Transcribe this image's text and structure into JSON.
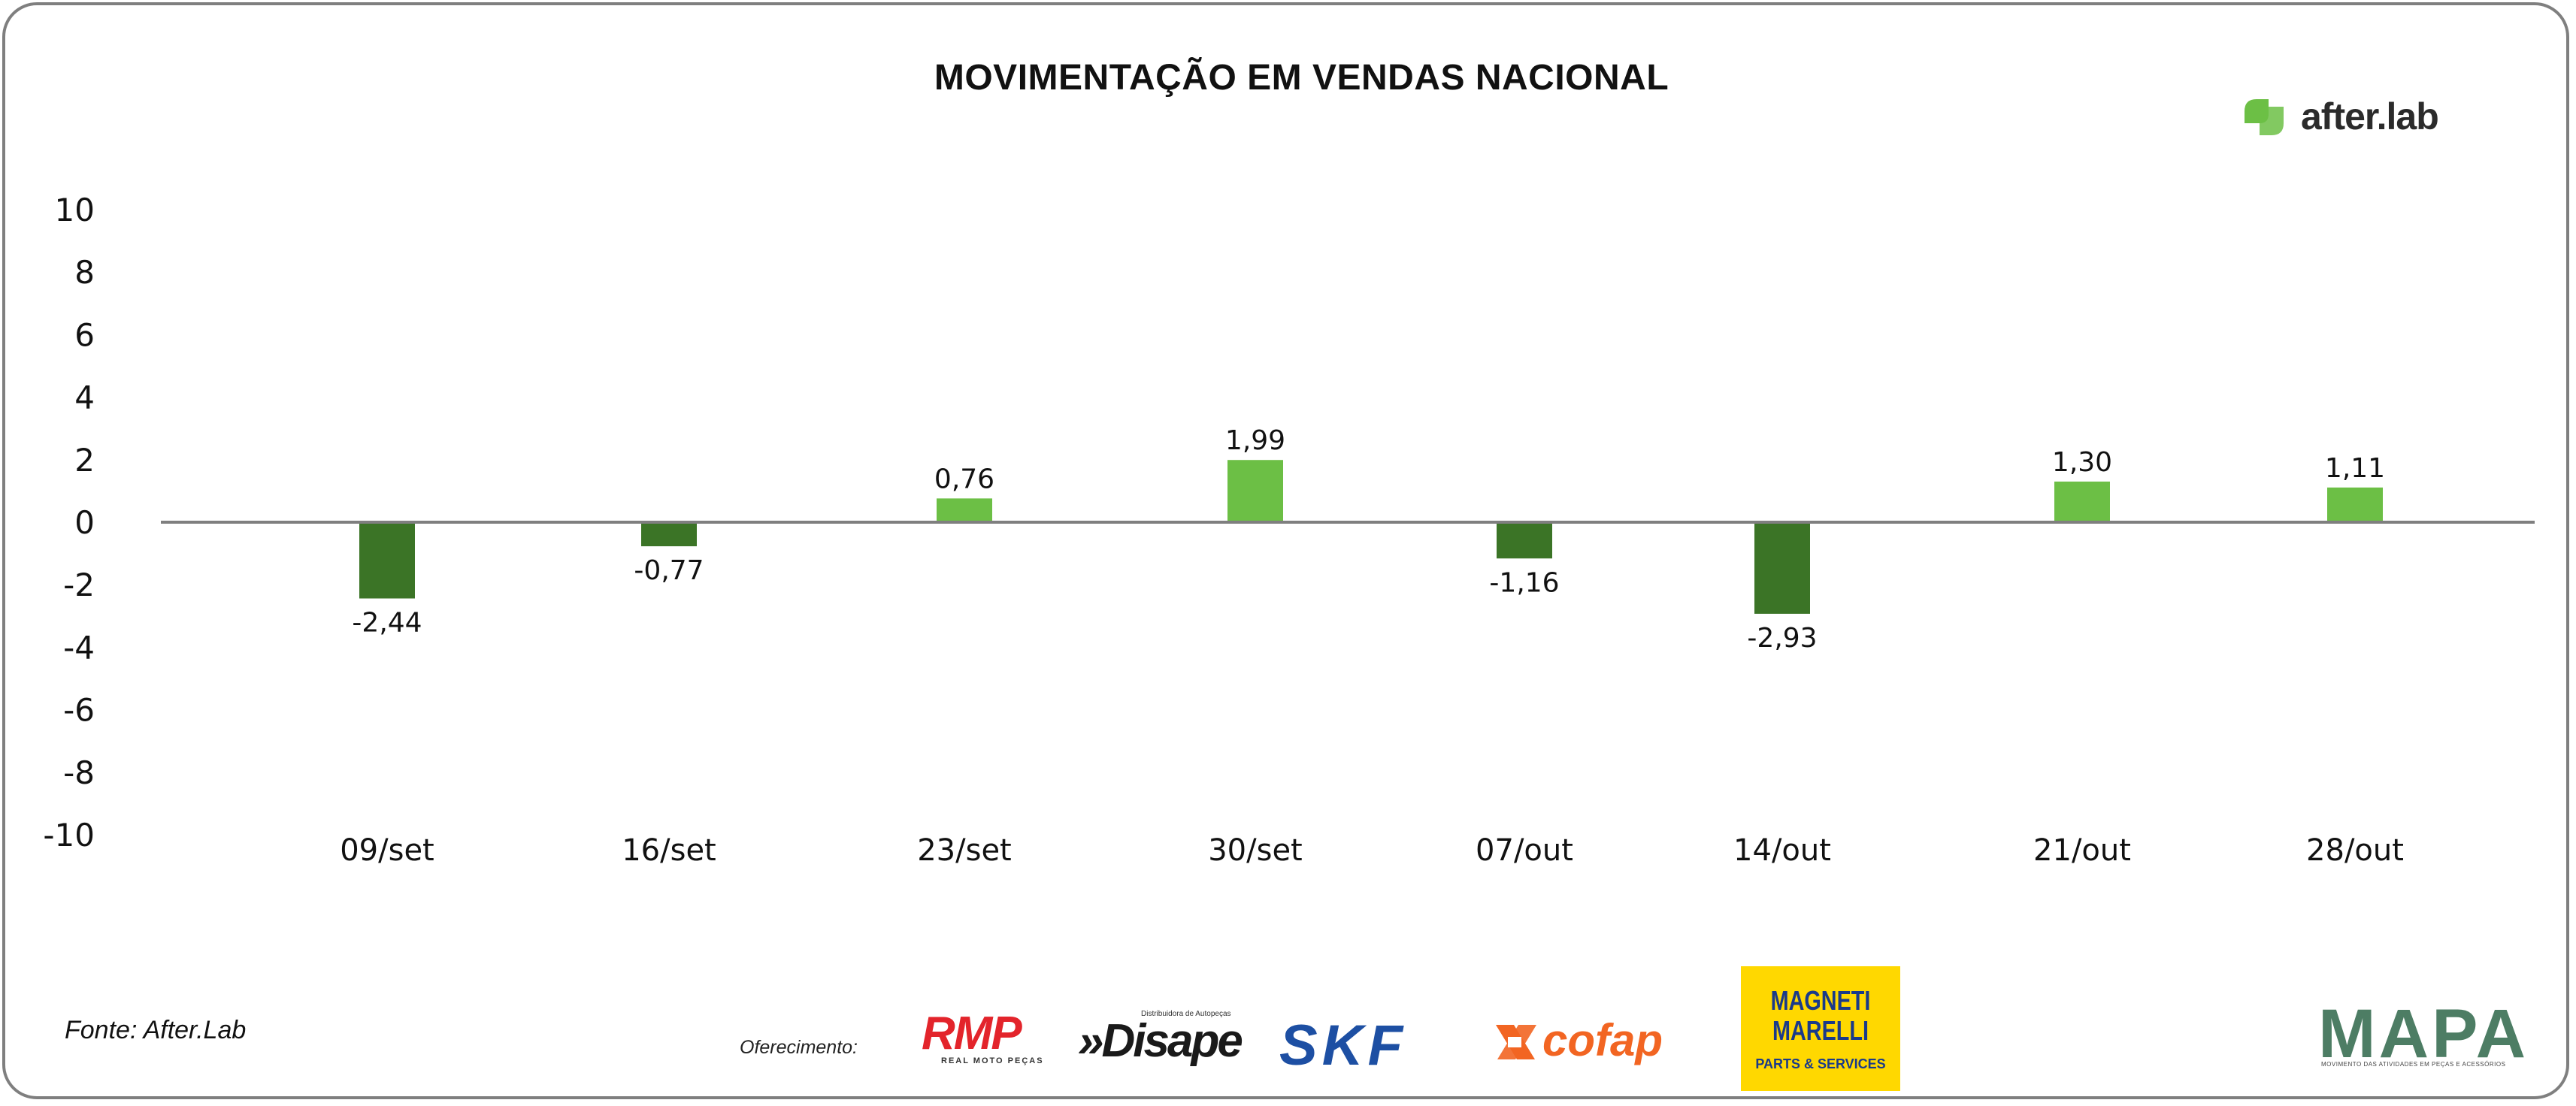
{
  "chart_data": {
    "type": "bar",
    "title": "MOVIMENTAÇÃO EM VENDAS NACIONAL",
    "xlabel": "",
    "ylabel": "",
    "categories": [
      "09/set",
      "16/set",
      "23/set",
      "30/set",
      "07/out",
      "14/out",
      "21/out",
      "28/out"
    ],
    "values": [
      -2.44,
      -0.77,
      0.76,
      1.99,
      -1.16,
      -2.93,
      1.3,
      1.11
    ],
    "data_labels": [
      "-2,44",
      "-0,77",
      "0,76",
      "1,99",
      "-1,16",
      "-2,93",
      "1,30",
      "1,11"
    ],
    "ylim": [
      -10,
      10
    ],
    "yticks": [
      10,
      8,
      6,
      4,
      2,
      0,
      -2,
      -4,
      -6,
      -8,
      -10
    ],
    "grid": false,
    "legend": "none",
    "colors": {
      "positive": "#6cbf45",
      "negative": "#3b7426",
      "axis": "#7f7f7f"
    }
  },
  "brand": {
    "name": "after.lab",
    "icon": "after-lab-leaf-icon",
    "color": "#6cbf45"
  },
  "footer": {
    "source": "Fonte: After.Lab",
    "sponsor_label": "Oferecimento:",
    "sponsors": {
      "rmp": {
        "name": "RMP",
        "tagline": "REAL MOTO PEÇAS"
      },
      "disape": {
        "name": "Disape",
        "tagline": "Distribuidora de Autopeças"
      },
      "skf": {
        "name": "SKF"
      },
      "cofap": {
        "name": "cofap"
      },
      "magneti": {
        "name": "MAGNETI MARELLI",
        "tagline": "PARTS & SERVICES"
      },
      "mapa": {
        "name": "MAPA",
        "tagline": "MOVIMENTO DAS ATIVIDADES EM PEÇAS E ACESSÓRIOS"
      }
    }
  }
}
